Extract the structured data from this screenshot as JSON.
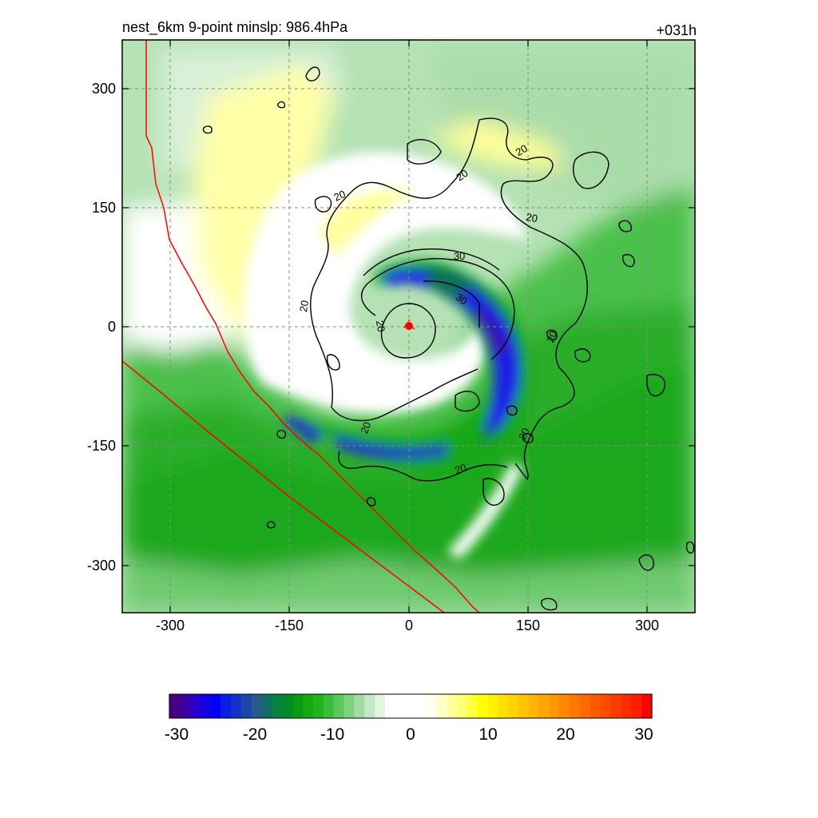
{
  "title_left": "nest_6km  9-point minslp: 986.4hPa",
  "title_right": "+031h",
  "chart_data": {
    "type": "heatmap",
    "x_ticks": [
      -300,
      -150,
      0,
      150,
      300
    ],
    "y_ticks": [
      300,
      150,
      0,
      -150,
      -300
    ],
    "xlim": [
      -360,
      360
    ],
    "ylim": [
      -360,
      360
    ],
    "grid": true,
    "contour_levels": [
      20,
      30
    ],
    "contour_labels": [
      {
        "text": "20",
        "x": 85,
        "y": 244
      },
      {
        "text": "20",
        "x": 145,
        "y": 218
      },
      {
        "text": "20",
        "x": -85,
        "y": 165
      },
      {
        "text": "20",
        "x": 155,
        "y": 135
      },
      {
        "text": "30",
        "x": 63,
        "y": 87
      },
      {
        "text": "30",
        "x": 63,
        "y": 33
      },
      {
        "text": "20",
        "x": -128,
        "y": 29
      },
      {
        "text": "20",
        "x": -40,
        "y": 4
      },
      {
        "text": "20",
        "x": 183,
        "y": -10
      },
      {
        "text": "20",
        "x": -50,
        "y": -125
      },
      {
        "text": "20",
        "x": 148,
        "y": -133
      },
      {
        "text": "20",
        "x": 65,
        "y": -178
      }
    ],
    "storm_center": {
      "x": 0,
      "y": 0
    },
    "colorbar": {
      "min": -30,
      "max": 30,
      "tick_labels": [
        "-30",
        "-20",
        "-10",
        "0",
        "10",
        "20",
        "30"
      ],
      "colors": [
        "#4b0082",
        "#3c00a0",
        "#2800c8",
        "#1400e6",
        "#0000ff",
        "#0a1ee6",
        "#1432c8",
        "#1e46aa",
        "#285a8c",
        "#0f6e64",
        "#05823c",
        "#008c28",
        "#0a9a14",
        "#14aa14",
        "#1eb41e",
        "#3cbe3c",
        "#5ac85a",
        "#7dd27d",
        "#a0dca0",
        "#c3e8c3",
        "#e2f4e2",
        "#ffffff",
        "#ffffff",
        "#ffffff",
        "#ffffff",
        "#fffff0",
        "#ffffc8",
        "#ffffa0",
        "#ffff78",
        "#ffff3c",
        "#ffff00",
        "#fff000",
        "#ffe100",
        "#ffd200",
        "#ffc300",
        "#ffb400",
        "#ffa500",
        "#ff9600",
        "#ff8700",
        "#ff7800",
        "#ff6900",
        "#ff5a00",
        "#ff4b00",
        "#ff3c00",
        "#ff2d00",
        "#ff1e00",
        "#ff0000"
      ]
    }
  }
}
